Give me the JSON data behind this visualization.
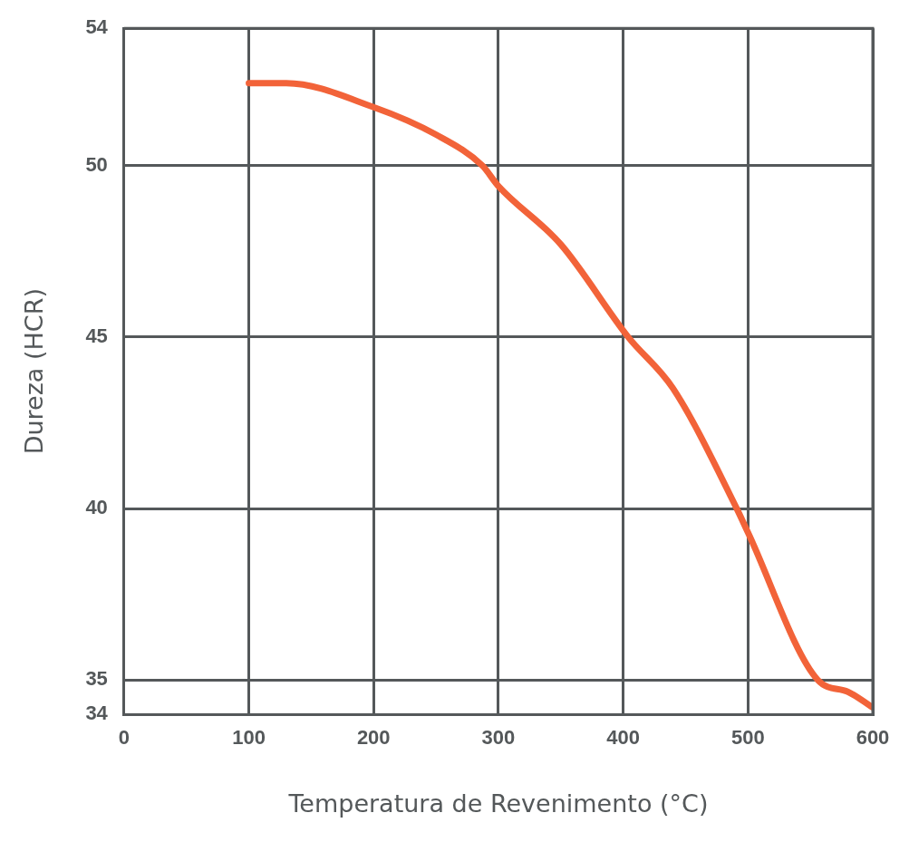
{
  "chart_data": {
    "type": "line",
    "xlabel": "Temperatura de Revenimento (°C)",
    "ylabel": "Dureza (HCR)",
    "x": [
      100,
      130,
      200,
      250,
      287,
      300,
      350,
      404,
      440,
      491,
      500,
      556,
      580,
      600
    ],
    "series": [
      {
        "color": "#f26339",
        "values": [
          52.4,
          52.4,
          51.7,
          50.9,
          50,
          49.4,
          47.7,
          45,
          43.5,
          40,
          39.3,
          35,
          34.66,
          34.2
        ]
      }
    ],
    "xlim": [
      0,
      600
    ],
    "xticks": [
      0,
      100,
      200,
      300,
      400,
      500,
      600
    ],
    "ylim": [
      34,
      54
    ],
    "yticks": [
      34,
      35,
      40,
      45,
      50,
      54
    ],
    "grid": true,
    "legend": false,
    "marker": "none",
    "line_style": "solid"
  }
}
